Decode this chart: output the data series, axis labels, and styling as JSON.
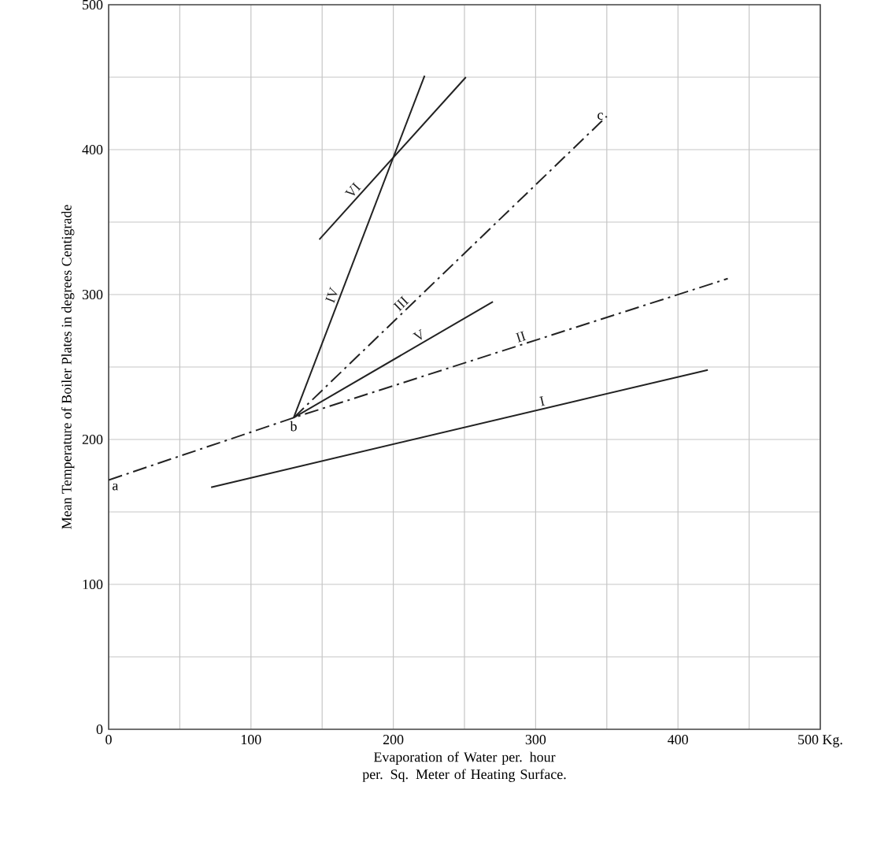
{
  "chart_data": {
    "type": "line",
    "xlabel": "Evaporation of Water per. hour per. Sq. Meter of Heating Surface.",
    "ylabel": "Mean Temperature of Boiler Plates in degrees Centigrade",
    "xlim": [
      0,
      500
    ],
    "ylim": [
      0,
      500
    ],
    "xticks": [
      0,
      {
        "value": 50,
        "label": null
      },
      100,
      {
        "value": 150,
        "label": null
      },
      200,
      {
        "value": 250,
        "label": null
      },
      300,
      {
        "value": 350,
        "label": null
      },
      400,
      {
        "value": 450,
        "label": null
      },
      {
        "value": 500,
        "label": "500 Kg."
      }
    ],
    "yticks": [
      0,
      {
        "value": 50,
        "label": null
      },
      100,
      {
        "value": 150,
        "label": null
      },
      200,
      {
        "value": 250,
        "label": null
      },
      300,
      {
        "value": 350,
        "label": null
      },
      400,
      {
        "value": 450,
        "label": null
      },
      500
    ],
    "grid": true,
    "legend": false,
    "marker": "none",
    "series": [
      {
        "name": "I",
        "color": "#222222",
        "line_style": "solid",
        "x": [
          72,
          421
        ],
        "values": [
          167,
          248
        ]
      },
      {
        "name": "II",
        "color": "#222222",
        "line_style": "dashed",
        "x": [
          0,
          130,
          435
        ],
        "values": [
          172,
          215,
          311
        ]
      },
      {
        "name": "III",
        "color": "#222222",
        "line_style": "dashed",
        "x": [
          130,
          350
        ],
        "values": [
          215,
          423
        ]
      },
      {
        "name": "IV",
        "color": "#222222",
        "line_style": "solid",
        "x": [
          130,
          222
        ],
        "values": [
          215,
          451
        ]
      },
      {
        "name": "V",
        "color": "#222222",
        "line_style": "solid",
        "x": [
          130,
          270
        ],
        "values": [
          215,
          295
        ]
      },
      {
        "name": "VI",
        "color": "#222222",
        "line_style": "solid",
        "x": [
          148,
          251
        ],
        "values": [
          338,
          450
        ]
      }
    ],
    "annotations": [
      {
        "text": "a",
        "x": 0,
        "y": 172
      },
      {
        "text": "b",
        "x": 130,
        "y": 215
      },
      {
        "text": "c",
        "x": 350,
        "y": 423
      }
    ]
  }
}
